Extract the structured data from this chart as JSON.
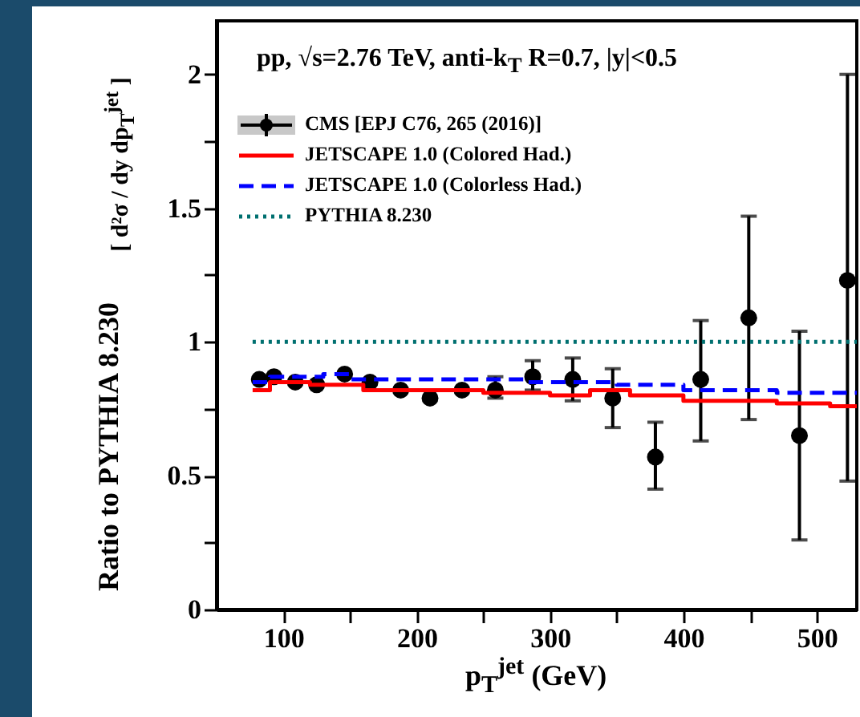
{
  "chart_data": {
    "type": "scatter",
    "xlabel": "p$_{T}$$^{jet}$  (GeV)",
    "ylabel": "Ratio to PYTHIA 8.230",
    "annotations": [
      "pp, √s=2.76 TeV, anti-k$_{T}$  R=0.7, |y|<0.5",
      "[ d²σ / dy dp$_{T}$$^{jet}$ ]"
    ],
    "xlim": [
      50,
      530
    ],
    "ylim": [
      0,
      2.2
    ],
    "xticks": [
      100,
      {
        "value": 150,
        "label": null
      },
      200,
      {
        "value": 250,
        "label": null
      },
      300,
      {
        "value": 350,
        "label": null
      },
      400,
      {
        "value": 450,
        "label": null
      },
      500
    ],
    "yticks": [
      0,
      {
        "value": 0.25,
        "label": null
      },
      0.5,
      {
        "value": 0.75,
        "label": null
      },
      1,
      {
        "value": 1.25,
        "label": null
      },
      1.5,
      {
        "value": 1.75,
        "label": null
      },
      2
    ],
    "legend": "top left",
    "series": [
      {
        "name": "CMS [EPJ C76, 265 (2016)]",
        "type": "scatter",
        "marker": "circle",
        "color": "#000000",
        "x": [
          82,
          93,
          109,
          125,
          146,
          165,
          188,
          210,
          234,
          259,
          287,
          317,
          347,
          379,
          413,
          449,
          487,
          523
        ],
        "values": [
          0.86,
          0.87,
          0.85,
          0.84,
          0.88,
          0.85,
          0.82,
          0.79,
          0.82,
          0.82,
          0.87,
          0.86,
          0.79,
          0.57,
          0.86,
          1.09,
          0.65,
          1.23
        ],
        "errors": [
          null,
          null,
          null,
          null,
          null,
          null,
          null,
          null,
          null,
          [
            0.79,
            0.87
          ],
          [
            0.82,
            0.93
          ],
          [
            0.78,
            0.94
          ],
          [
            0.68,
            0.9
          ],
          [
            0.45,
            0.7
          ],
          [
            0.63,
            1.08
          ],
          [
            0.71,
            1.47
          ],
          [
            0.26,
            1.04
          ],
          [
            0.48,
            2.0
          ]
        ]
      },
      {
        "name": "JETSCAPE 1.0 (Colored Had.)",
        "type": "step",
        "line_style": "solid",
        "color": "#ff0000",
        "x": [
          77,
          90,
          120,
          160,
          250,
          300,
          330,
          360,
          400,
          470,
          510,
          530
        ],
        "values": [
          0.82,
          0.85,
          0.84,
          0.82,
          0.81,
          0.8,
          0.82,
          0.8,
          0.78,
          0.77,
          0.76,
          0.76
        ]
      },
      {
        "name": "JETSCAPE 1.0 (Colorless Had.)",
        "type": "step",
        "line_style": "dashed",
        "color": "#0000ff",
        "x": [
          77,
          90,
          130,
          150,
          200,
          280,
          350,
          400,
          470,
          530
        ],
        "values": [
          0.85,
          0.87,
          0.88,
          0.86,
          0.86,
          0.85,
          0.84,
          0.82,
          0.81,
          0.81
        ]
      },
      {
        "name": "PYTHIA 8.230",
        "type": "line",
        "line_style": "dotted",
        "color": "#007070",
        "x": [
          77,
          530
        ],
        "values": [
          1,
          1
        ]
      }
    ]
  }
}
